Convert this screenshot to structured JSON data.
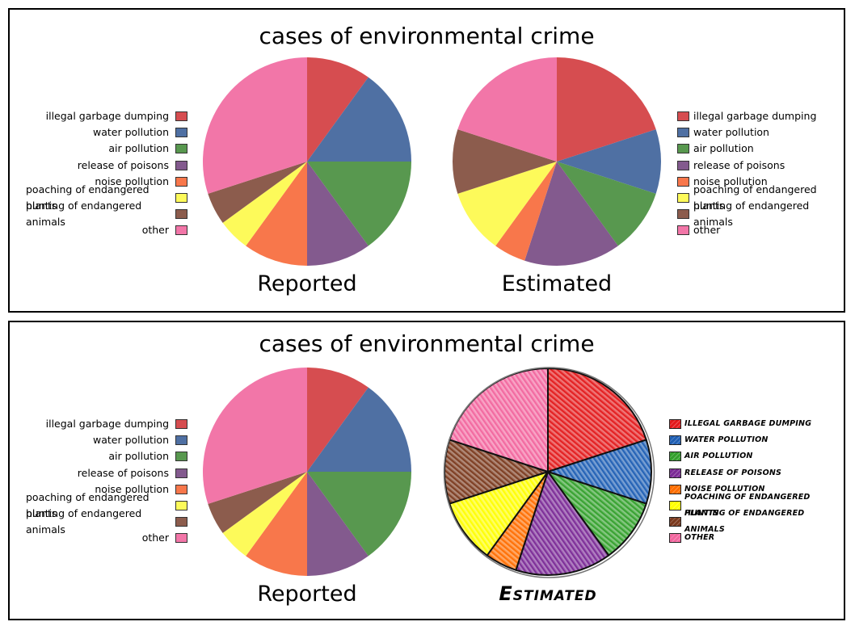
{
  "chart_data": [
    {
      "type": "pie",
      "title": "cases of environmental crime",
      "legend": [
        "illegal garbage dumping",
        "water pollution",
        "air pollution",
        "release of poisons",
        "noise pollution",
        "poaching of endangered plants",
        "hunting of endangered animals",
        "other"
      ],
      "colors": [
        "#d64d50",
        "#4f70a3",
        "#58984f",
        "#835a8e",
        "#f8774b",
        "#fdfa5a",
        "#8c5c4d",
        "#f276a8"
      ],
      "pies": [
        {
          "name": "Reported",
          "values": [
            10,
            15,
            15,
            10,
            10,
            5,
            5,
            30
          ]
        },
        {
          "name": "Estimated",
          "values": [
            20,
            10,
            10,
            15,
            5,
            10,
            10,
            20
          ]
        }
      ]
    },
    {
      "type": "pie",
      "title": "cases of environmental crime",
      "legend": [
        "illegal garbage dumping",
        "water pollution",
        "air pollution",
        "release of poisons",
        "noise pollution",
        "poaching of endangered plants",
        "hunting of endangered animals",
        "other"
      ],
      "colors": [
        "#d64d50",
        "#4f70a3",
        "#58984f",
        "#835a8e",
        "#f8774b",
        "#fdfa5a",
        "#8c5c4d",
        "#f276a8"
      ],
      "sketch_colors": [
        "#e31a1c",
        "#1f5fb4",
        "#33a02c",
        "#7b2a96",
        "#ff6d00",
        "#ffff00",
        "#7b3a1e",
        "#f2669e"
      ],
      "pies": [
        {
          "name": "Reported",
          "values": [
            10,
            15,
            15,
            10,
            10,
            5,
            5,
            30
          ]
        },
        {
          "name": "Estimated",
          "values": [
            20,
            10,
            10,
            15,
            5,
            10,
            10,
            20
          ]
        }
      ]
    }
  ]
}
